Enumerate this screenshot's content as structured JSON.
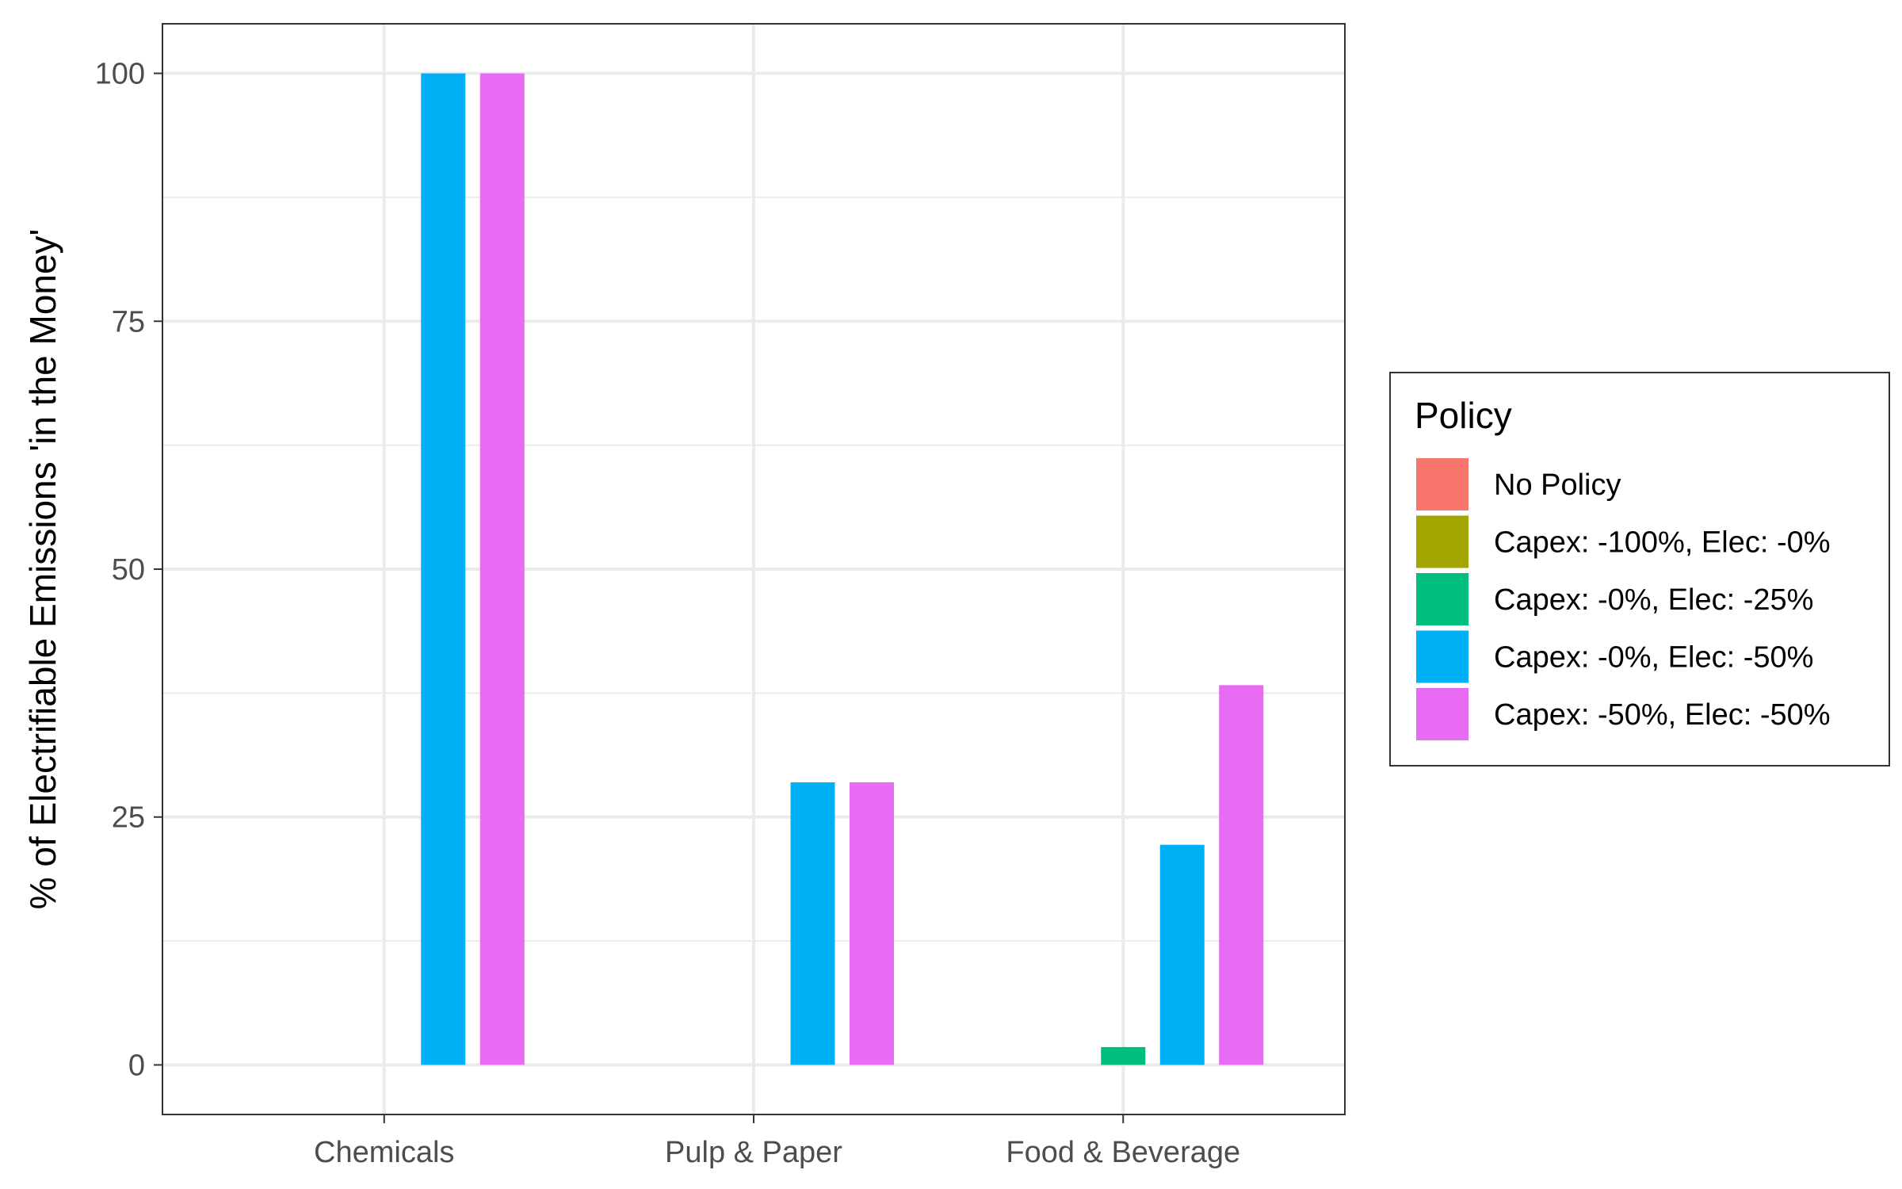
{
  "chart_data": {
    "type": "bar",
    "categories": [
      "Chemicals",
      "Pulp & Paper",
      "Food & Beverage"
    ],
    "ylabel": "% of Electrifiable Emissions 'in the Money'",
    "xlabel": "",
    "ylim": [
      -5,
      105
    ],
    "yticks": [
      "0",
      "25",
      "50",
      "75",
      "100"
    ],
    "grid": true,
    "legend": {
      "title": "Policy",
      "position": "right"
    },
    "series": [
      {
        "name": "No Policy",
        "color": "#F8766D",
        "values": [
          0,
          0,
          0
        ]
      },
      {
        "name": "Capex: -100%, Elec: -0%",
        "color": "#A3A500",
        "values": [
          0,
          0,
          0
        ]
      },
      {
        "name": "Capex: -0%, Elec: -25%",
        "color": "#00BF7D",
        "values": [
          0,
          0,
          1.8
        ]
      },
      {
        "name": "Capex: -0%, Elec: -50%",
        "color": "#00B0F6",
        "values": [
          100,
          28.5,
          22.2
        ]
      },
      {
        "name": "Capex: -50%, Elec: -50%",
        "color": "#E76BF3",
        "values": [
          100,
          28.5,
          38.3
        ]
      }
    ]
  }
}
